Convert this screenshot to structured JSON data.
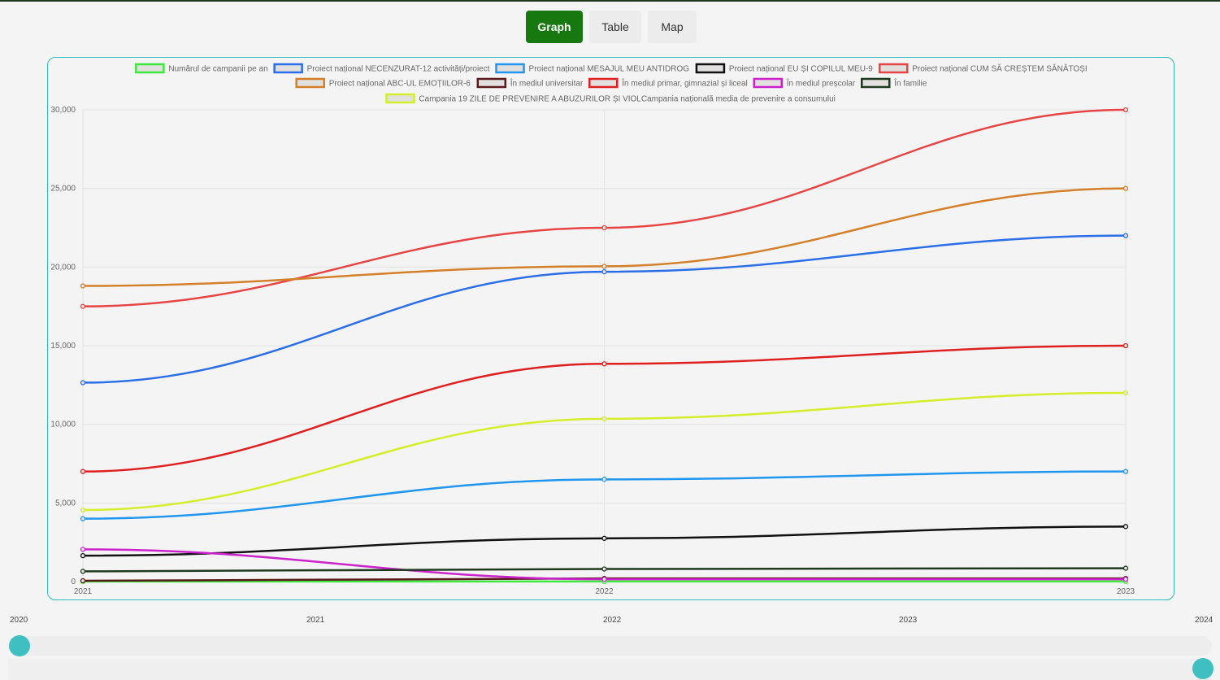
{
  "tabs": [
    {
      "label": "Graph",
      "active": true
    },
    {
      "label": "Table",
      "active": false
    },
    {
      "label": "Map",
      "active": false
    }
  ],
  "range_slider": {
    "labels": [
      "2020",
      "2021",
      "2022",
      "2023",
      "2024"
    ],
    "start_value": 2020,
    "end_value": 2024
  },
  "chart_data": {
    "type": "line",
    "x": [
      "2021",
      "2022",
      "2023"
    ],
    "ylim": [
      0,
      30000
    ],
    "yticks": [
      "0",
      "5,000",
      "10,000",
      "15,000",
      "20,000",
      "25,000",
      "30,000"
    ],
    "legend_position": "top",
    "series": [
      {
        "name": "Numărul de campanii pe an",
        "color": "#3ee83e",
        "values": [
          5,
          5,
          5
        ]
      },
      {
        "name": "Proiect național NECENZURAT-12 activități/proiect",
        "color": "#2a6ee8",
        "values": [
          12650,
          19700,
          22000
        ]
      },
      {
        "name": "Proiect național MESAJUL MEU ANTIDROG",
        "color": "#2196ee",
        "values": [
          4000,
          6500,
          7000
        ]
      },
      {
        "name": "Proiect național EU ȘI COPILUL MEU-9",
        "color": "#111111",
        "values": [
          1650,
          2750,
          3500
        ]
      },
      {
        "name": "Proiect național CUM SĂ CREȘTEM SĂNĂTOȘI",
        "color": "#e84444",
        "values": [
          17500,
          22500,
          30000
        ]
      },
      {
        "name": "Proiect național ABC-UL EMOȚIILOR-6",
        "color": "#d4802a",
        "values": [
          18800,
          20050,
          25000
        ]
      },
      {
        "name": "În mediul universitar",
        "color": "#5a1a1a",
        "values": [
          50,
          200,
          200
        ]
      },
      {
        "name": "În mediul primar, gimnazial și liceal",
        "color": "#e02020",
        "values": [
          7000,
          13850,
          15000
        ]
      },
      {
        "name": "În mediul preșcolar",
        "color": "#cc22cc",
        "values": [
          2050,
          150,
          150
        ]
      },
      {
        "name": "În familie",
        "color": "#1e3a1e",
        "values": [
          650,
          800,
          850
        ]
      },
      {
        "name": "Campania 19 ZILE DE PREVENIRE A ABUZURILOR ȘI VIOLCampania națională media de prevenire a consumului",
        "color": "#d4ef2a",
        "values": [
          4550,
          10350,
          12000
        ]
      }
    ]
  }
}
